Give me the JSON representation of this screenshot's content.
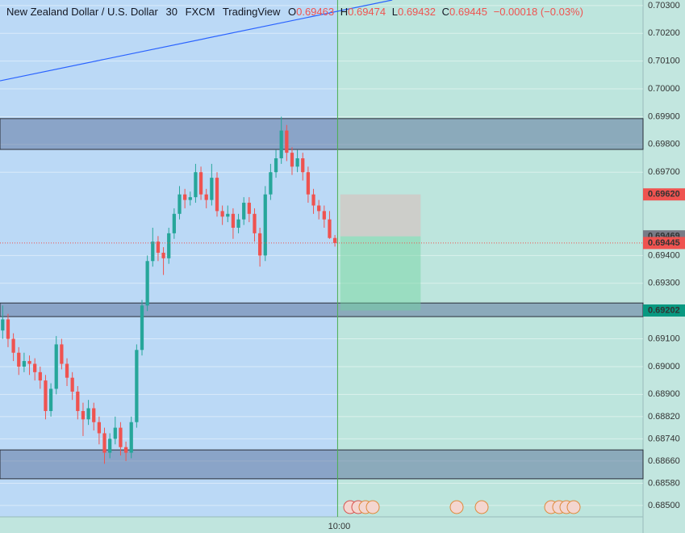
{
  "chart_data": {
    "type": "candlestick",
    "title": "New Zealand Dollar / U.S. Dollar",
    "interval": "30",
    "source": "FXCM",
    "platform": "TradingView",
    "ohlc_labels": [
      "O",
      "H",
      "L",
      "C"
    ],
    "change": "−0.00018 (−0.03%)",
    "up_color": "#26a69a",
    "down_color": "#ef5350",
    "open": [
      0.6913,
      0.6917,
      0.691,
      0.6905,
      0.69,
      0.6902,
      0.6901,
      0.6898,
      0.6895,
      0.6884,
      0.6892,
      0.6908,
      0.6901,
      0.6896,
      0.6891,
      0.6884,
      0.6881,
      0.6885,
      0.688,
      0.6876,
      0.6869,
      0.6874,
      0.6878,
      0.6871,
      0.6869,
      0.688,
      0.6906,
      0.6922,
      0.6938,
      0.6945,
      0.6941,
      0.6939,
      0.6948,
      0.6955,
      0.6962,
      0.696,
      0.6961,
      0.697,
      0.6962,
      0.696,
      0.6968,
      0.6956,
      0.6954,
      0.6955,
      0.695,
      0.6953,
      0.6959,
      0.6955,
      0.6948,
      0.694,
      0.6962,
      0.697,
      0.6975,
      0.6985,
      0.6977,
      0.6972,
      0.6975,
      0.697,
      0.6962,
      0.6958,
      0.6956,
      0.6953,
      0.69463
    ],
    "high": [
      0.6922,
      0.6919,
      0.6912,
      0.6907,
      0.6905,
      0.6904,
      0.6903,
      0.69,
      0.6897,
      0.6894,
      0.6911,
      0.691,
      0.6903,
      0.6898,
      0.6893,
      0.6887,
      0.6888,
      0.6887,
      0.6882,
      0.6878,
      0.6876,
      0.6882,
      0.688,
      0.6873,
      0.6882,
      0.6908,
      0.6924,
      0.694,
      0.695,
      0.6947,
      0.6943,
      0.695,
      0.6957,
      0.6965,
      0.6964,
      0.6963,
      0.6973,
      0.6972,
      0.6964,
      0.6973,
      0.697,
      0.6958,
      0.6958,
      0.6957,
      0.6955,
      0.6961,
      0.6961,
      0.6957,
      0.695,
      0.6965,
      0.6973,
      0.6978,
      0.699,
      0.6987,
      0.6979,
      0.6978,
      0.6977,
      0.6972,
      0.6964,
      0.696,
      0.6958,
      0.6956,
      0.69474
    ],
    "low": [
      0.691,
      0.6907,
      0.6902,
      0.6897,
      0.6898,
      0.6897,
      0.6895,
      0.6892,
      0.6881,
      0.6882,
      0.689,
      0.6899,
      0.6893,
      0.6888,
      0.6881,
      0.6875,
      0.6879,
      0.6877,
      0.6872,
      0.6865,
      0.6867,
      0.6872,
      0.6868,
      0.6866,
      0.6867,
      0.6878,
      0.6904,
      0.692,
      0.6936,
      0.6938,
      0.6933,
      0.6937,
      0.6946,
      0.6953,
      0.6957,
      0.6958,
      0.6959,
      0.696,
      0.6957,
      0.6958,
      0.6954,
      0.6951,
      0.6952,
      0.6946,
      0.6948,
      0.6951,
      0.6952,
      0.6945,
      0.6936,
      0.6938,
      0.696,
      0.6968,
      0.6973,
      0.6974,
      0.6969,
      0.697,
      0.6967,
      0.6959,
      0.6955,
      0.6953,
      0.695,
      0.6946,
      0.69432
    ],
    "close": [
      0.6917,
      0.691,
      0.6905,
      0.69,
      0.6902,
      0.6901,
      0.6898,
      0.6895,
      0.6884,
      0.6892,
      0.6908,
      0.6901,
      0.6896,
      0.6891,
      0.6884,
      0.6881,
      0.6885,
      0.688,
      0.6876,
      0.6869,
      0.6874,
      0.6878,
      0.6871,
      0.6869,
      0.688,
      0.6906,
      0.6922,
      0.6938,
      0.6945,
      0.6941,
      0.6939,
      0.6948,
      0.6955,
      0.6962,
      0.696,
      0.6961,
      0.697,
      0.6962,
      0.696,
      0.6968,
      0.6956,
      0.6954,
      0.6955,
      0.695,
      0.6953,
      0.6959,
      0.6955,
      0.6948,
      0.694,
      0.6962,
      0.697,
      0.6975,
      0.6985,
      0.6977,
      0.6972,
      0.6975,
      0.697,
      0.6962,
      0.6958,
      0.6956,
      0.6953,
      0.69463,
      0.69445
    ],
    "xlim": [
      0,
      120
    ],
    "xticks": [
      {
        "value": 63,
        "label": "10:00"
      }
    ],
    "ylim": [
      0.68459,
      0.7032
    ],
    "yticks": [
      {
        "value": 0.703,
        "label": "0.70300"
      },
      {
        "value": 0.702,
        "label": "0.70200"
      },
      {
        "value": 0.701,
        "label": "0.70100"
      },
      {
        "value": 0.7,
        "label": "0.70000"
      },
      {
        "value": 0.699,
        "label": "0.69900"
      },
      {
        "value": 0.698,
        "label": "0.69800"
      },
      {
        "value": 0.697,
        "label": "0.69700"
      },
      {
        "value": 0.694,
        "label": "0.69400"
      },
      {
        "value": 0.693,
        "label": "0.69300"
      },
      {
        "value": 0.691,
        "label": "0.69100"
      },
      {
        "value": 0.69,
        "label": "0.69000"
      },
      {
        "value": 0.689,
        "label": "0.68900"
      },
      {
        "value": 0.6882,
        "label": "0.68820"
      },
      {
        "value": 0.6874,
        "label": "0.68740"
      },
      {
        "value": 0.6866,
        "label": "0.68660"
      },
      {
        "value": 0.6858,
        "label": "0.68580"
      },
      {
        "value": 0.685,
        "label": "0.68500"
      }
    ],
    "grid": true,
    "zones": [
      [
        0.69782,
        0.69893
      ],
      [
        0.6918,
        0.69229
      ],
      [
        0.68596,
        0.687
      ]
    ],
    "zone_color": "#5a6f99",
    "trend_line": {
      "x": [
        0,
        73.2
      ],
      "y": [
        0.70029,
        0.7032
      ],
      "color": "#2962ff"
    },
    "position": {
      "x": [
        63.5,
        78.5
      ],
      "stop": {
        "value": 0.6962,
        "label": "0.69620"
      },
      "entry": 0.69469,
      "target": 0.69202
    }
  }
}
